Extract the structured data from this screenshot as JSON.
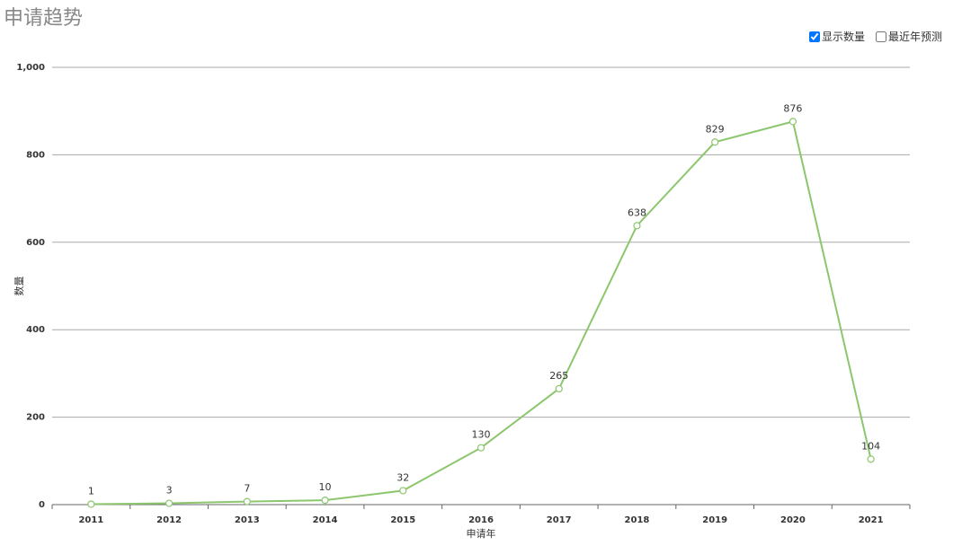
{
  "chart_data": {
    "type": "line",
    "title": "申请趋势",
    "x_label": "申请年",
    "y_label": "数量",
    "categories": [
      "2011",
      "2012",
      "2013",
      "2014",
      "2015",
      "2016",
      "2017",
      "2018",
      "2019",
      "2020",
      "2021"
    ],
    "series": [
      {
        "name": "数量",
        "color": "#8cc66d",
        "values": [
          1,
          3,
          7,
          10,
          32,
          130,
          265,
          638,
          829,
          876,
          104
        ]
      }
    ],
    "ylim": [
      0,
      1000
    ],
    "yticks": [
      0,
      200,
      400,
      600,
      800,
      {
        "value": 1000,
        "label": "1,000"
      }
    ],
    "grid": true
  },
  "controls": [
    {
      "label": "显示数量",
      "checked": true
    },
    {
      "label": "最近年预测",
      "checked": false
    }
  ]
}
